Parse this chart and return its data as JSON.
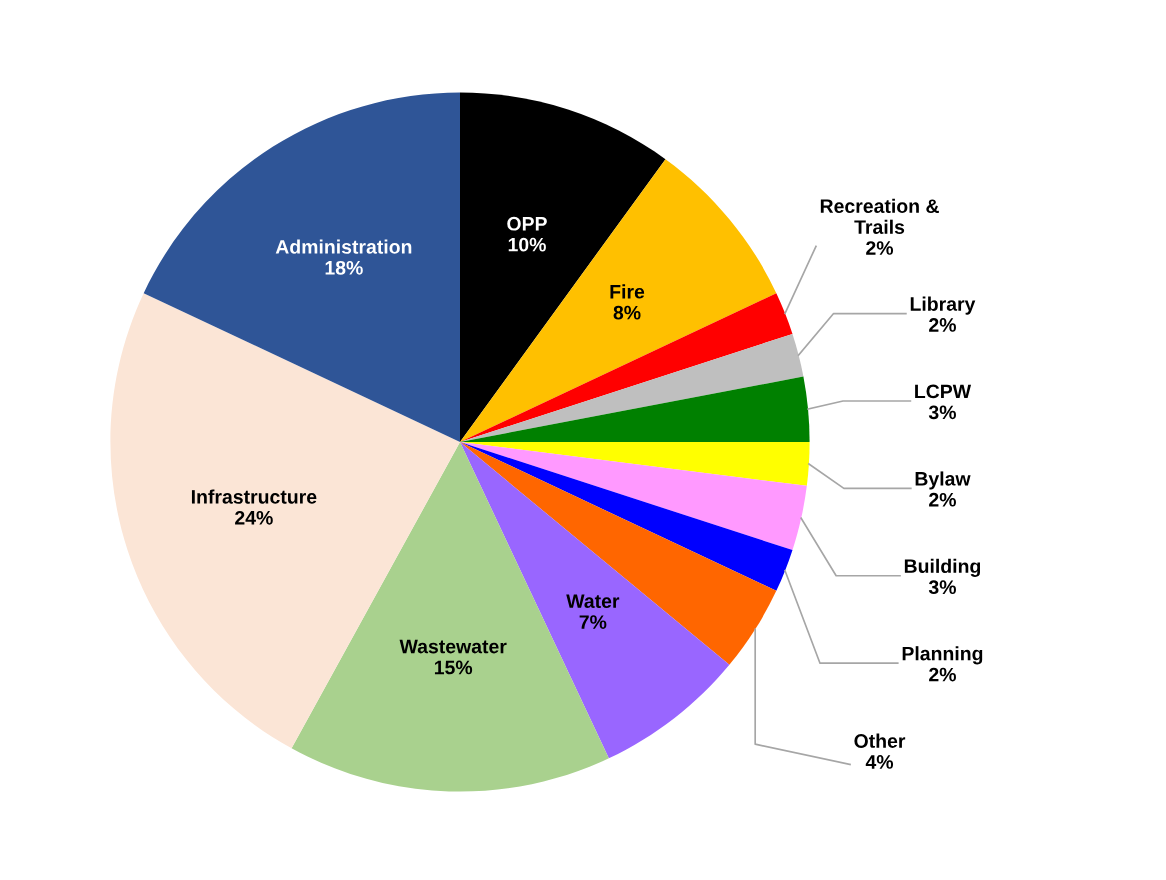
{
  "chart_data": {
    "type": "pie",
    "categories": [
      "OPP",
      "Fire",
      "Recreation &\nTrails",
      "Library",
      "LCPW",
      "Bylaw",
      "Building",
      "Planning",
      "Other",
      "Water",
      "Wastewater",
      "Infrastructure",
      "Administration"
    ],
    "values": [
      10,
      8,
      2,
      2,
      3,
      2,
      3,
      2,
      4,
      7,
      15,
      24,
      18
    ],
    "value_labels": [
      "10%",
      "8%",
      "2%",
      "2%",
      "3%",
      "2%",
      "3%",
      "2%",
      "4%",
      "7%",
      "15%",
      "24%",
      "18%"
    ],
    "colors": [
      "#000000",
      "#ffc000",
      "#ff0000",
      "#bfbfbf",
      "#008000",
      "#ffff00",
      "#ff99ff",
      "#0000ff",
      "#ff6600",
      "#9966ff",
      "#a9d18e",
      "#fbe5d6",
      "#2f5597"
    ],
    "legend": false
  }
}
